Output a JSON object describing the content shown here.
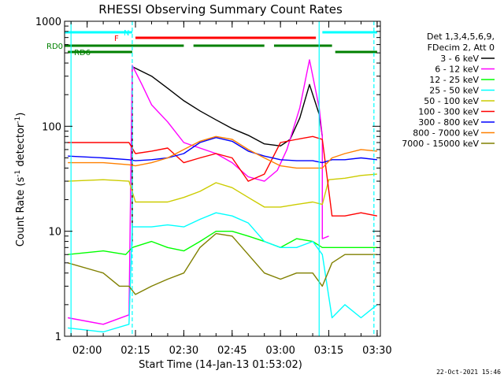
{
  "chart_data": {
    "type": "line",
    "title": "RHESSI Observing Summary Count Rates",
    "xlabel": "Start Time (14-Jan-13 01:53:02)",
    "ylabel": "Count Rate (s",
    "ylabel_sup": "-1",
    "ylabel_tail": " detector",
    "ylabel_end": ")",
    "x_start": "01:53",
    "x_end": "03:31",
    "x_ticks": [
      "02:00",
      "02:15",
      "02:30",
      "02:45",
      "03:00",
      "03:15",
      "03:30"
    ],
    "y_scale": "log",
    "ylim": [
      1,
      1000
    ],
    "y_tick_labels": [
      "1",
      "10",
      "100",
      "1000"
    ],
    "legend_title": [
      "Det 1,3,4,5,6,9,",
      "FDecim 2, Att 0"
    ],
    "series": [
      {
        "name": "3 - 6 keV",
        "color": "#000000",
        "points": [
          [
            "02:14",
            8
          ],
          [
            "02:14",
            370
          ],
          [
            "02:20",
            300
          ],
          [
            "02:25",
            230
          ],
          [
            "02:30",
            175
          ],
          [
            "02:35",
            140
          ],
          [
            "02:40",
            115
          ],
          [
            "02:45",
            95
          ],
          [
            "02:50",
            82
          ],
          [
            "02:55",
            68
          ],
          [
            "03:00",
            65
          ],
          [
            "03:03",
            75
          ],
          [
            "03:06",
            120
          ],
          [
            "03:09",
            250
          ],
          [
            "03:12",
            130
          ],
          [
            "03:13",
            80
          ]
        ]
      },
      {
        "name": "6 - 12 keV",
        "color": "#ff00ff",
        "points": [
          [
            "01:54",
            1.5
          ],
          [
            "02:05",
            1.3
          ],
          [
            "02:13",
            1.6
          ],
          [
            "02:14",
            380
          ],
          [
            "02:17",
            250
          ],
          [
            "02:20",
            160
          ],
          [
            "02:25",
            110
          ],
          [
            "02:30",
            70
          ],
          [
            "02:35",
            62
          ],
          [
            "02:40",
            55
          ],
          [
            "02:45",
            45
          ],
          [
            "02:50",
            33
          ],
          [
            "02:55",
            30
          ],
          [
            "02:59",
            38
          ],
          [
            "03:02",
            60
          ],
          [
            "03:06",
            150
          ],
          [
            "03:09",
            430
          ],
          [
            "03:12",
            150
          ],
          [
            "03:13",
            80
          ],
          [
            "03:13",
            8.5
          ],
          [
            "03:15",
            9
          ]
        ]
      },
      {
        "name": "12 - 25 keV",
        "color": "#00ff00",
        "points": [
          [
            "01:54",
            6
          ],
          [
            "02:05",
            6.5
          ],
          [
            "02:12",
            6
          ],
          [
            "02:14",
            7
          ],
          [
            "02:20",
            8
          ],
          [
            "02:25",
            7
          ],
          [
            "02:30",
            6.5
          ],
          [
            "02:35",
            8
          ],
          [
            "02:40",
            10
          ],
          [
            "02:45",
            10
          ],
          [
            "02:50",
            9
          ],
          [
            "02:55",
            8
          ],
          [
            "03:00",
            7
          ],
          [
            "03:05",
            8.5
          ],
          [
            "03:10",
            8
          ],
          [
            "03:13",
            7
          ],
          [
            "03:16",
            7
          ],
          [
            "03:20",
            7
          ],
          [
            "03:25",
            7
          ],
          [
            "03:30",
            7
          ]
        ]
      },
      {
        "name": "25 - 50 keV",
        "color": "#00ffff",
        "points": [
          [
            "01:54",
            1.2
          ],
          [
            "02:05",
            1.1
          ],
          [
            "02:13",
            1.3
          ],
          [
            "02:14",
            11
          ],
          [
            "02:20",
            11
          ],
          [
            "02:25",
            11.5
          ],
          [
            "02:30",
            11
          ],
          [
            "02:35",
            13
          ],
          [
            "02:40",
            15
          ],
          [
            "02:45",
            14
          ],
          [
            "02:50",
            12
          ],
          [
            "02:55",
            8
          ],
          [
            "03:00",
            7
          ],
          [
            "03:05",
            7
          ],
          [
            "03:10",
            8
          ],
          [
            "03:13",
            6
          ],
          [
            "03:16",
            1.5
          ],
          [
            "03:20",
            2
          ],
          [
            "03:25",
            1.5
          ],
          [
            "03:30",
            2
          ]
        ]
      },
      {
        "name": "50 - 100 keV",
        "color": "#cccc00",
        "points": [
          [
            "01:54",
            30
          ],
          [
            "02:05",
            31
          ],
          [
            "02:13",
            30
          ],
          [
            "02:15",
            19
          ],
          [
            "02:20",
            19
          ],
          [
            "02:25",
            19
          ],
          [
            "02:30",
            21
          ],
          [
            "02:35",
            24
          ],
          [
            "02:40",
            29
          ],
          [
            "02:45",
            26
          ],
          [
            "02:50",
            21
          ],
          [
            "02:55",
            17
          ],
          [
            "03:00",
            17
          ],
          [
            "03:05",
            18
          ],
          [
            "03:10",
            19
          ],
          [
            "03:13",
            18
          ],
          [
            "03:15",
            31
          ],
          [
            "03:20",
            32
          ],
          [
            "03:25",
            34
          ],
          [
            "03:30",
            35
          ]
        ]
      },
      {
        "name": "100 - 300 keV",
        "color": "#ff0000",
        "points": [
          [
            "01:54",
            70
          ],
          [
            "02:05",
            70
          ],
          [
            "02:13",
            70
          ],
          [
            "02:15",
            55
          ],
          [
            "02:20",
            58
          ],
          [
            "02:25",
            62
          ],
          [
            "02:30",
            45
          ],
          [
            "02:35",
            50
          ],
          [
            "02:40",
            55
          ],
          [
            "02:45",
            50
          ],
          [
            "02:50",
            30
          ],
          [
            "02:55",
            35
          ],
          [
            "03:00",
            70
          ],
          [
            "03:05",
            75
          ],
          [
            "03:10",
            80
          ],
          [
            "03:13",
            75
          ],
          [
            "03:16",
            14
          ],
          [
            "03:20",
            14
          ],
          [
            "03:25",
            15
          ],
          [
            "03:30",
            14
          ]
        ]
      },
      {
        "name": "300 - 800 keV",
        "color": "#0000ff",
        "points": [
          [
            "01:54",
            52
          ],
          [
            "02:05",
            50
          ],
          [
            "02:13",
            48
          ],
          [
            "02:15",
            47
          ],
          [
            "02:20",
            48
          ],
          [
            "02:25",
            50
          ],
          [
            "02:30",
            55
          ],
          [
            "02:35",
            70
          ],
          [
            "02:40",
            78
          ],
          [
            "02:45",
            72
          ],
          [
            "02:50",
            58
          ],
          [
            "02:55",
            52
          ],
          [
            "03:00",
            48
          ],
          [
            "03:05",
            47
          ],
          [
            "03:10",
            47
          ],
          [
            "03:13",
            45
          ],
          [
            "03:16",
            48
          ],
          [
            "03:20",
            48
          ],
          [
            "03:25",
            50
          ],
          [
            "03:30",
            48
          ]
        ]
      },
      {
        "name": "800 - 7000 keV",
        "color": "#ff8000",
        "points": [
          [
            "01:54",
            45
          ],
          [
            "02:05",
            45
          ],
          [
            "02:13",
            43
          ],
          [
            "02:15",
            42
          ],
          [
            "02:20",
            45
          ],
          [
            "02:25",
            50
          ],
          [
            "02:30",
            60
          ],
          [
            "02:35",
            72
          ],
          [
            "02:40",
            80
          ],
          [
            "02:45",
            75
          ],
          [
            "02:50",
            60
          ],
          [
            "02:55",
            50
          ],
          [
            "03:00",
            42
          ],
          [
            "03:05",
            40
          ],
          [
            "03:10",
            40
          ],
          [
            "03:13",
            40
          ],
          [
            "03:16",
            50
          ],
          [
            "03:20",
            55
          ],
          [
            "03:25",
            60
          ],
          [
            "03:30",
            58
          ]
        ]
      },
      {
        "name": "7000 - 15000 keV",
        "color": "#808000",
        "points": [
          [
            "01:54",
            5
          ],
          [
            "02:05",
            4
          ],
          [
            "02:10",
            3
          ],
          [
            "02:13",
            3
          ],
          [
            "02:15",
            2.5
          ],
          [
            "02:20",
            3
          ],
          [
            "02:25",
            3.5
          ],
          [
            "02:30",
            4
          ],
          [
            "02:35",
            7
          ],
          [
            "02:40",
            9.5
          ],
          [
            "02:45",
            9
          ],
          [
            "02:50",
            6
          ],
          [
            "02:55",
            4
          ],
          [
            "03:00",
            3.5
          ],
          [
            "03:05",
            4
          ],
          [
            "03:10",
            4
          ],
          [
            "03:13",
            3
          ],
          [
            "03:16",
            5
          ],
          [
            "03:20",
            6
          ],
          [
            "03:25",
            6
          ],
          [
            "03:30",
            6
          ]
        ]
      }
    ],
    "bars": [
      {
        "label": "N",
        "color": "#00ffff",
        "segments": [
          [
            "01:53",
            "02:14"
          ],
          [
            "03:13",
            "03:30"
          ]
        ]
      },
      {
        "label": "F",
        "color": "#ff0000",
        "segments": [
          [
            "02:15",
            "03:11"
          ]
        ]
      },
      {
        "label": "RD0",
        "color": "#008000",
        "segments": [
          [
            "01:53",
            "02:30"
          ],
          [
            "02:33",
            "02:55"
          ],
          [
            "02:58",
            "03:16"
          ]
        ]
      },
      {
        "label": "RD6",
        "color": "#008000",
        "segments": [
          [
            "01:54",
            "02:14"
          ],
          [
            "03:17",
            "03:30"
          ]
        ]
      }
    ],
    "vlines": [
      {
        "t": "01:55",
        "color": "#00ffff",
        "style": "solid"
      },
      {
        "t": "02:14",
        "color": "#00ffff",
        "style": "dashed"
      },
      {
        "t": "03:12",
        "color": "#00ffff",
        "style": "solid"
      },
      {
        "t": "03:29",
        "color": "#00ffff",
        "style": "dashed"
      }
    ],
    "grid": false,
    "legend_placement": "right"
  },
  "footer": {
    "timestamp": "22-Oct-2021 15:46"
  }
}
